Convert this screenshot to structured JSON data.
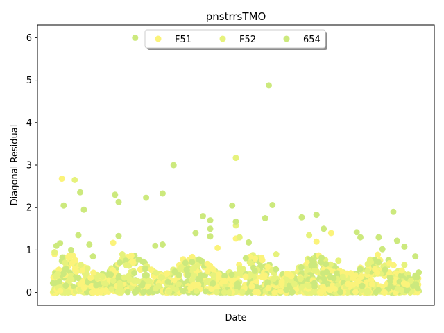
{
  "chart_data": {
    "type": "scatter",
    "title": "pnstrrsTMO",
    "xlabel": "Date",
    "ylabel": "Diagonal Residual",
    "ylim": [
      -0.3,
      6.3
    ],
    "yticks": [
      "0",
      "1",
      "2",
      "3",
      "4",
      "5",
      "6"
    ],
    "legend": {
      "placement": "top-center",
      "ncol": 3
    },
    "grid": false,
    "series": [
      {
        "name": "F51",
        "color": "#fbf37a",
        "points": [
          [
            0.005,
            0.9
          ],
          [
            0.025,
            2.68
          ],
          [
            0.055,
            0.87
          ],
          [
            0.165,
            1.17
          ],
          [
            0.215,
            0.87
          ],
          [
            0.22,
            0.7
          ],
          [
            0.45,
            1.05
          ],
          [
            0.5,
            1.27
          ],
          [
            0.57,
            0.82
          ],
          [
            0.72,
            1.2
          ],
          [
            0.76,
            1.4
          ],
          [
            0.88,
            0.55
          ]
        ]
      },
      {
        "name": "F52",
        "color": "#e6f27c",
        "points": [
          [
            0.005,
            0.95
          ],
          [
            0.06,
            2.65
          ],
          [
            0.19,
            0.9
          ],
          [
            0.43,
            1.32
          ],
          [
            0.5,
            3.17
          ],
          [
            0.5,
            1.58
          ],
          [
            0.51,
            1.3
          ],
          [
            0.61,
            0.9
          ],
          [
            0.7,
            1.35
          ],
          [
            0.78,
            0.75
          ],
          [
            0.86,
            0.67
          ],
          [
            0.96,
            0.65
          ]
        ]
      },
      {
        "name": "654",
        "color": "#cce97d",
        "points": [
          [
            0.01,
            1.1
          ],
          [
            0.02,
            1.16
          ],
          [
            0.03,
            2.05
          ],
          [
            0.05,
            1.0
          ],
          [
            0.07,
            1.35
          ],
          [
            0.075,
            2.36
          ],
          [
            0.085,
            1.95
          ],
          [
            0.1,
            1.13
          ],
          [
            0.11,
            0.85
          ],
          [
            0.17,
            2.3
          ],
          [
            0.18,
            2.13
          ],
          [
            0.18,
            1.33
          ],
          [
            0.225,
            6.0
          ],
          [
            0.255,
            2.23
          ],
          [
            0.28,
            1.1
          ],
          [
            0.3,
            1.13
          ],
          [
            0.3,
            2.33
          ],
          [
            0.33,
            3.0
          ],
          [
            0.39,
            1.4
          ],
          [
            0.41,
            1.8
          ],
          [
            0.43,
            1.7
          ],
          [
            0.43,
            1.5
          ],
          [
            0.43,
            1.32
          ],
          [
            0.49,
            2.05
          ],
          [
            0.5,
            1.67
          ],
          [
            0.535,
            1.18
          ],
          [
            0.58,
            1.75
          ],
          [
            0.59,
            4.88
          ],
          [
            0.6,
            2.06
          ],
          [
            0.68,
            1.77
          ],
          [
            0.72,
            1.83
          ],
          [
            0.74,
            1.5
          ],
          [
            0.83,
            1.42
          ],
          [
            0.84,
            1.3
          ],
          [
            0.89,
            1.3
          ],
          [
            0.9,
            1.02
          ],
          [
            0.93,
            1.9
          ],
          [
            0.94,
            1.22
          ],
          [
            0.96,
            1.08
          ],
          [
            0.99,
            0.85
          ]
        ]
      }
    ],
    "band": {
      "ymin": 0.0,
      "ymax": 0.75,
      "description": "dense cluster of points near zero across full date range"
    }
  }
}
